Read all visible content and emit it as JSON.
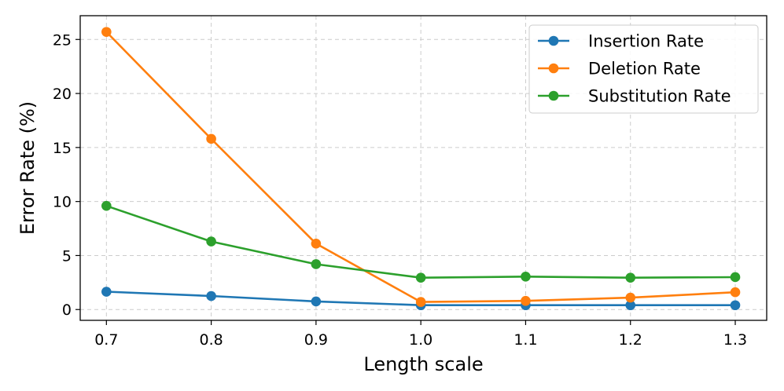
{
  "chart_data": {
    "type": "line",
    "x": [
      0.7,
      0.8,
      0.9,
      1.0,
      1.1,
      1.2,
      1.3
    ],
    "x_tick_labels": [
      "0.7",
      "0.8",
      "0.9",
      "1.0",
      "1.1",
      "1.2",
      "1.3"
    ],
    "y_ticks": [
      0,
      5,
      10,
      15,
      20,
      25
    ],
    "y_tick_labels": [
      "0",
      "5",
      "10",
      "15",
      "20",
      "25"
    ],
    "xlabel": "Length scale",
    "ylabel": "Error Rate (%)",
    "xlim": [
      0.675,
      1.33
    ],
    "ylim": [
      -1.0,
      27.2
    ],
    "grid": true,
    "legend_position": "top-right",
    "series": [
      {
        "name": "Insertion Rate",
        "color": "#1f77b4",
        "values": [
          1.65,
          1.25,
          0.75,
          0.4,
          0.4,
          0.4,
          0.4
        ]
      },
      {
        "name": "Deletion Rate",
        "color": "#ff7f0e",
        "values": [
          25.7,
          15.8,
          6.1,
          0.7,
          0.8,
          1.1,
          1.6
        ]
      },
      {
        "name": "Substitution Rate",
        "color": "#2ca02c",
        "values": [
          9.6,
          6.3,
          4.2,
          2.95,
          3.05,
          2.95,
          3.0
        ]
      }
    ]
  }
}
